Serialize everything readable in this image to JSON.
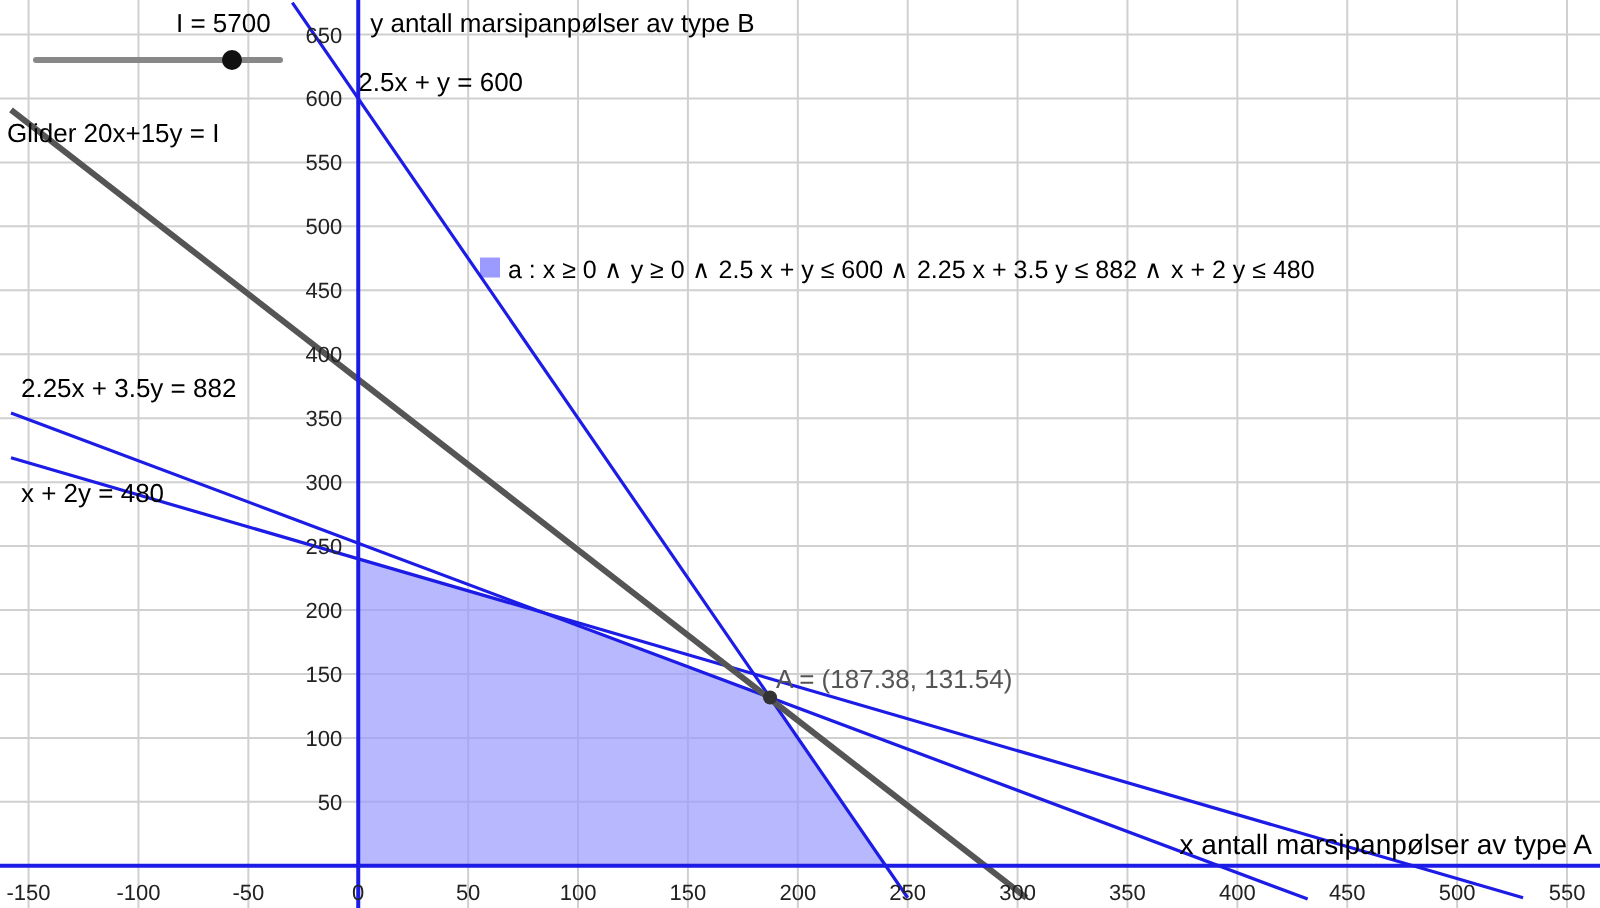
{
  "chart_data": {
    "type": "line",
    "xlabel": "x antall marsipanpølser av type A",
    "ylabel": "y antall marsipanpølser av type B",
    "xlim": [
      -163,
      565
    ],
    "ylim": [
      -33,
      677
    ],
    "xticks": [
      -150,
      -100,
      -50,
      0,
      50,
      100,
      150,
      200,
      250,
      300,
      350,
      400,
      450,
      500,
      550
    ],
    "yticks": [
      {
        "value": 0,
        "label": null
      },
      50,
      100,
      150,
      200,
      250,
      300,
      350,
      400,
      450,
      500,
      550,
      600,
      650
    ],
    "grid": true,
    "legend": "top right",
    "annotations": [
      "I = 5700"
    ],
    "series": [
      {
        "name": "a : x ≥ 0 ∧ y ≥ 0 ∧ 2.5 x + y ≤ 600 ∧ 2.25 x + 3.5 y ≤ 882 ∧ x + 2 y ≤ 480",
        "type": "area",
        "color": "#9a9aff",
        "x": [
          0,
          0,
          84,
          187.38,
          240
        ],
        "values": [
          0,
          240,
          198,
          131.54,
          0
        ]
      },
      {
        "name": "2.5x + y = 600",
        "color": "#1c1ce6",
        "x": [
          -30,
          250
        ],
        "values": [
          675,
          -25
        ]
      },
      {
        "name": "2.25x + 3.5y = 882",
        "color": "#1c1ce6",
        "x": [
          -158,
          432
        ],
        "values": [
          354,
          -26
        ]
      },
      {
        "name": "x + 2y = 480",
        "color": "#1c1ce6",
        "x": [
          -158,
          530
        ],
        "values": [
          319,
          -25
        ]
      },
      {
        "name": "Glider 20x+15y = I",
        "color": "#555555",
        "x": [
          -158,
          304
        ],
        "values": [
          591,
          -25
        ]
      },
      {
        "type": "scatter",
        "color": "#333333",
        "x": [
          187.38
        ],
        "values": [
          131.54
        ],
        "value_labels": [
          "A = (187.38, 131.54)"
        ]
      }
    ]
  }
}
